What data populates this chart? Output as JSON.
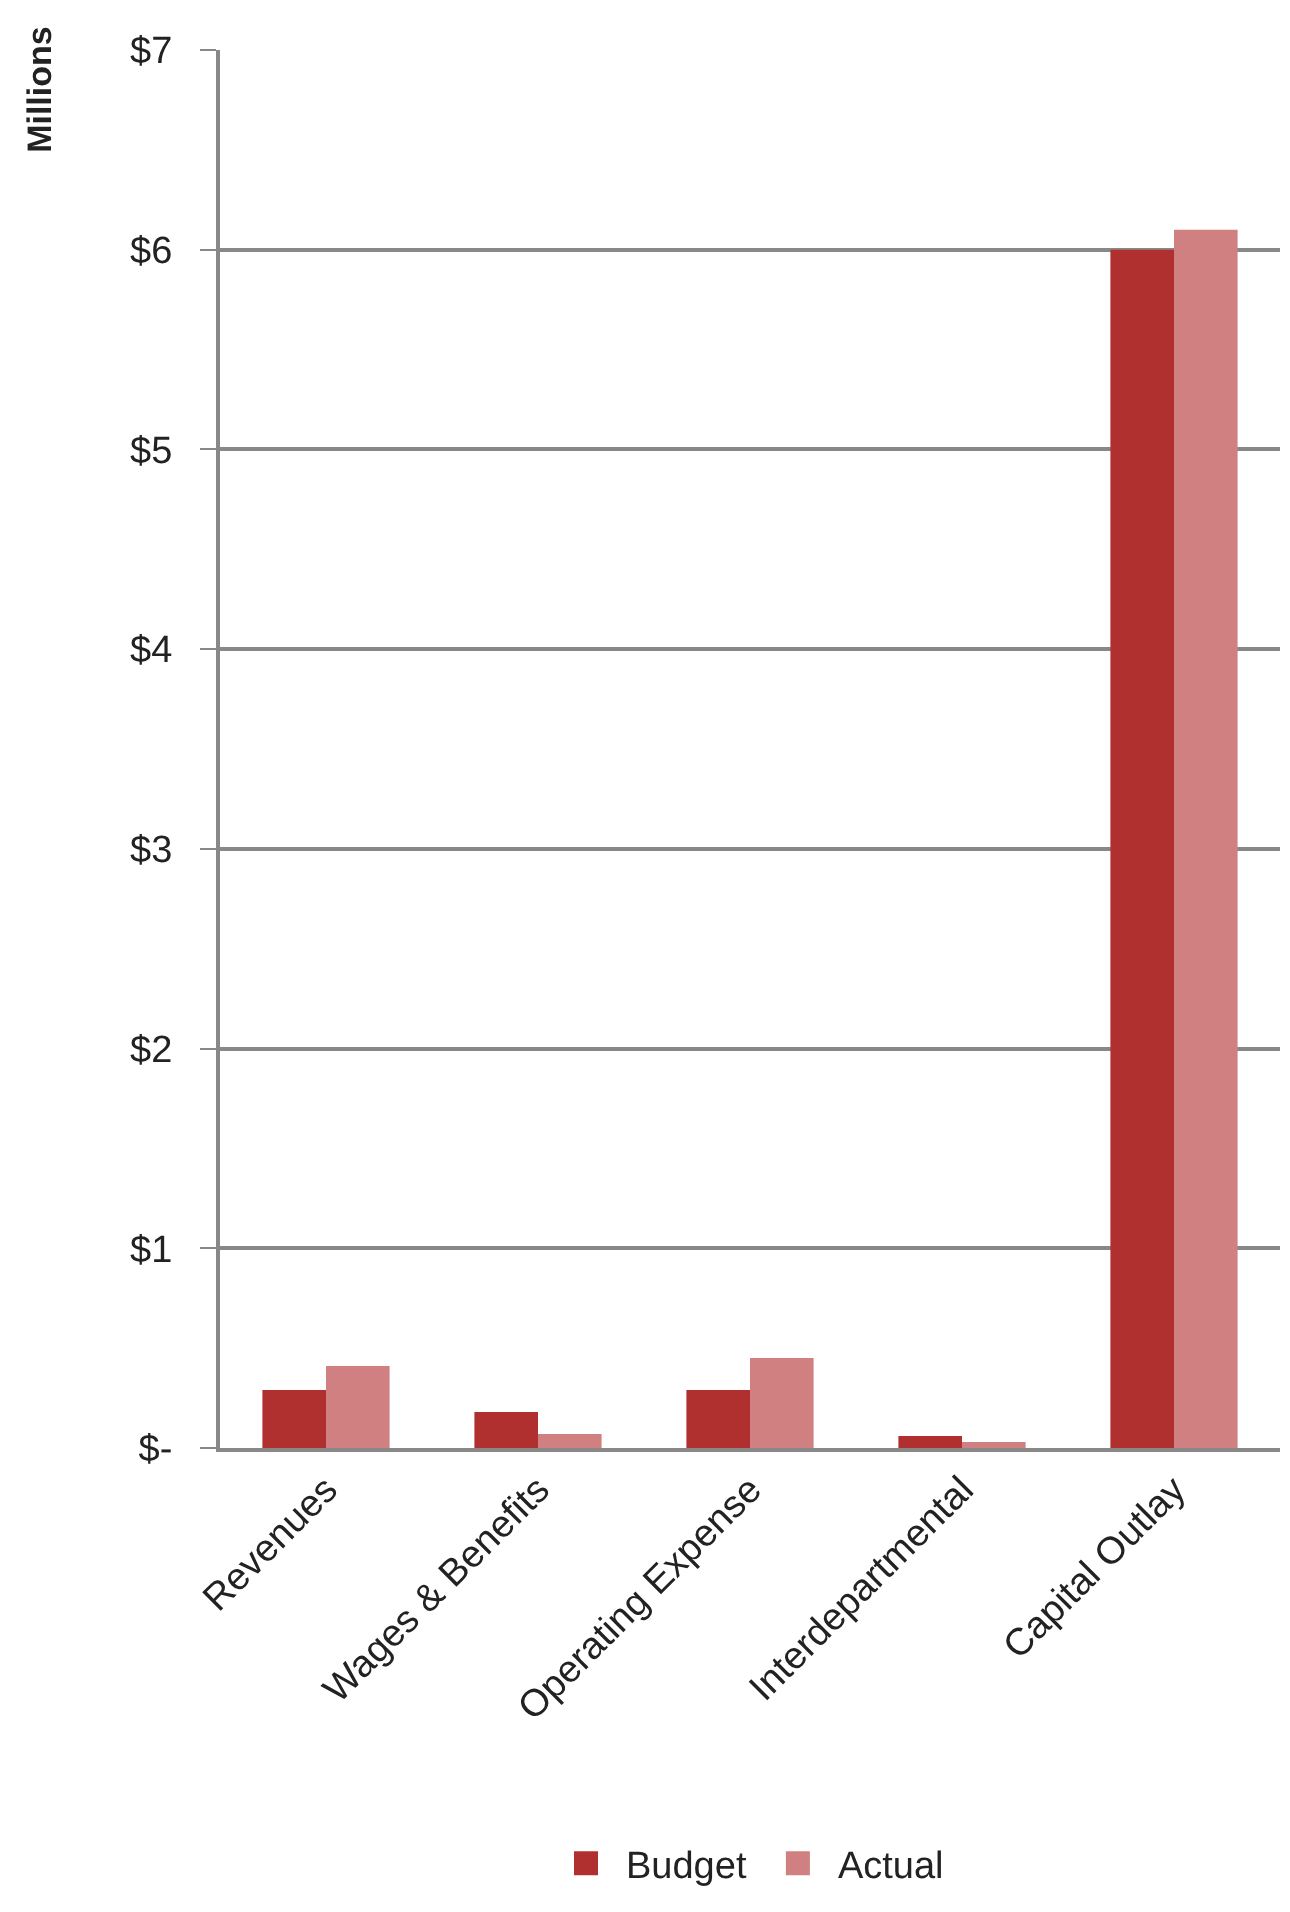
{
  "chart_data": {
    "type": "bar",
    "ylabel": "Millions",
    "categories": [
      "Revenues",
      "Wages & Benefits",
      "Operating Expense",
      "Interdepartmental",
      "Capital Outlay"
    ],
    "series": [
      {
        "name": "Budget",
        "color": "#b03030",
        "values": [
          0.29,
          0.18,
          0.29,
          0.06,
          6.0
        ]
      },
      {
        "name": "Actual",
        "color": "#d08080",
        "values": [
          0.41,
          0.07,
          0.45,
          0.03,
          6.1
        ]
      }
    ],
    "ylim": [
      0,
      7
    ],
    "yticks": [
      {
        "value": 0,
        "label": "$-"
      },
      {
        "value": 1,
        "label": "$1"
      },
      {
        "value": 2,
        "label": "$2"
      },
      {
        "value": 3,
        "label": "$3"
      },
      {
        "value": 4,
        "label": "$4"
      },
      {
        "value": 5,
        "label": "$5"
      },
      {
        "value": 6,
        "label": "$6"
      },
      {
        "value": 7,
        "label": "$7"
      }
    ],
    "grid": "y",
    "legend": "bottom"
  }
}
